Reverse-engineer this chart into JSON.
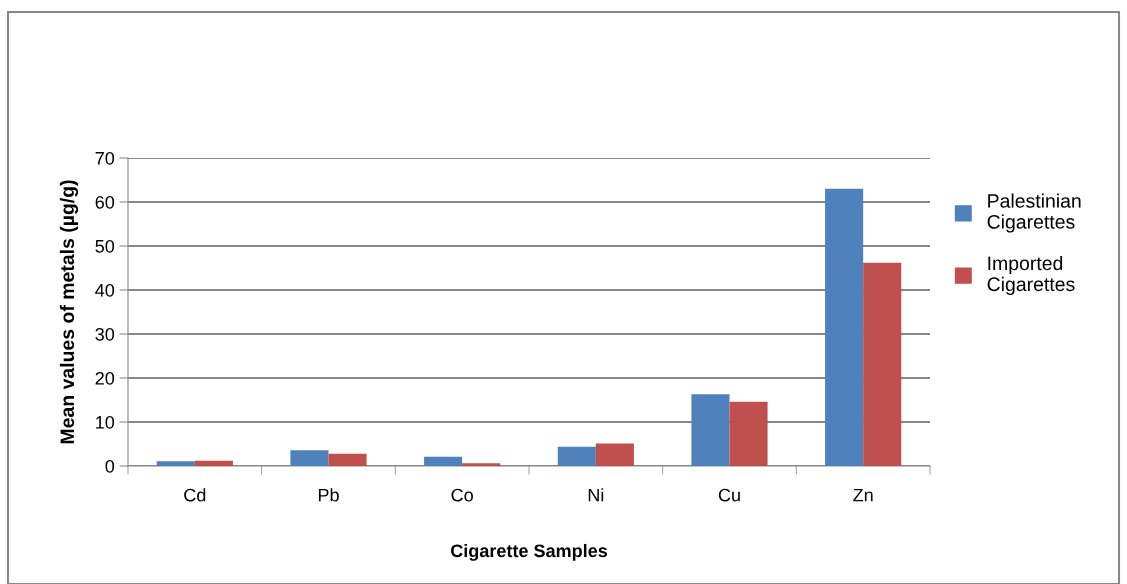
{
  "chart_data": {
    "type": "bar",
    "xlabel": "Cigarette Samples",
    "ylabel": "Mean values of metals (µg/g)",
    "categories": [
      "Cd",
      "Pb",
      "Co",
      "Ni",
      "Cu",
      "Zn"
    ],
    "series": [
      {
        "name": "Palestinian Cigarettes",
        "color": "#4f81bd",
        "values": [
          1.1,
          3.6,
          2.1,
          4.4,
          16.3,
          63.0
        ]
      },
      {
        "name": "Imported Cigarettes",
        "color": "#c0504d",
        "values": [
          1.2,
          2.8,
          0.6,
          5.1,
          14.6,
          46.2
        ]
      }
    ],
    "ylim": [
      0,
      70
    ],
    "yticks": [
      0,
      10,
      20,
      30,
      40,
      50,
      60,
      70
    ],
    "grid": "y",
    "legend": "right"
  }
}
